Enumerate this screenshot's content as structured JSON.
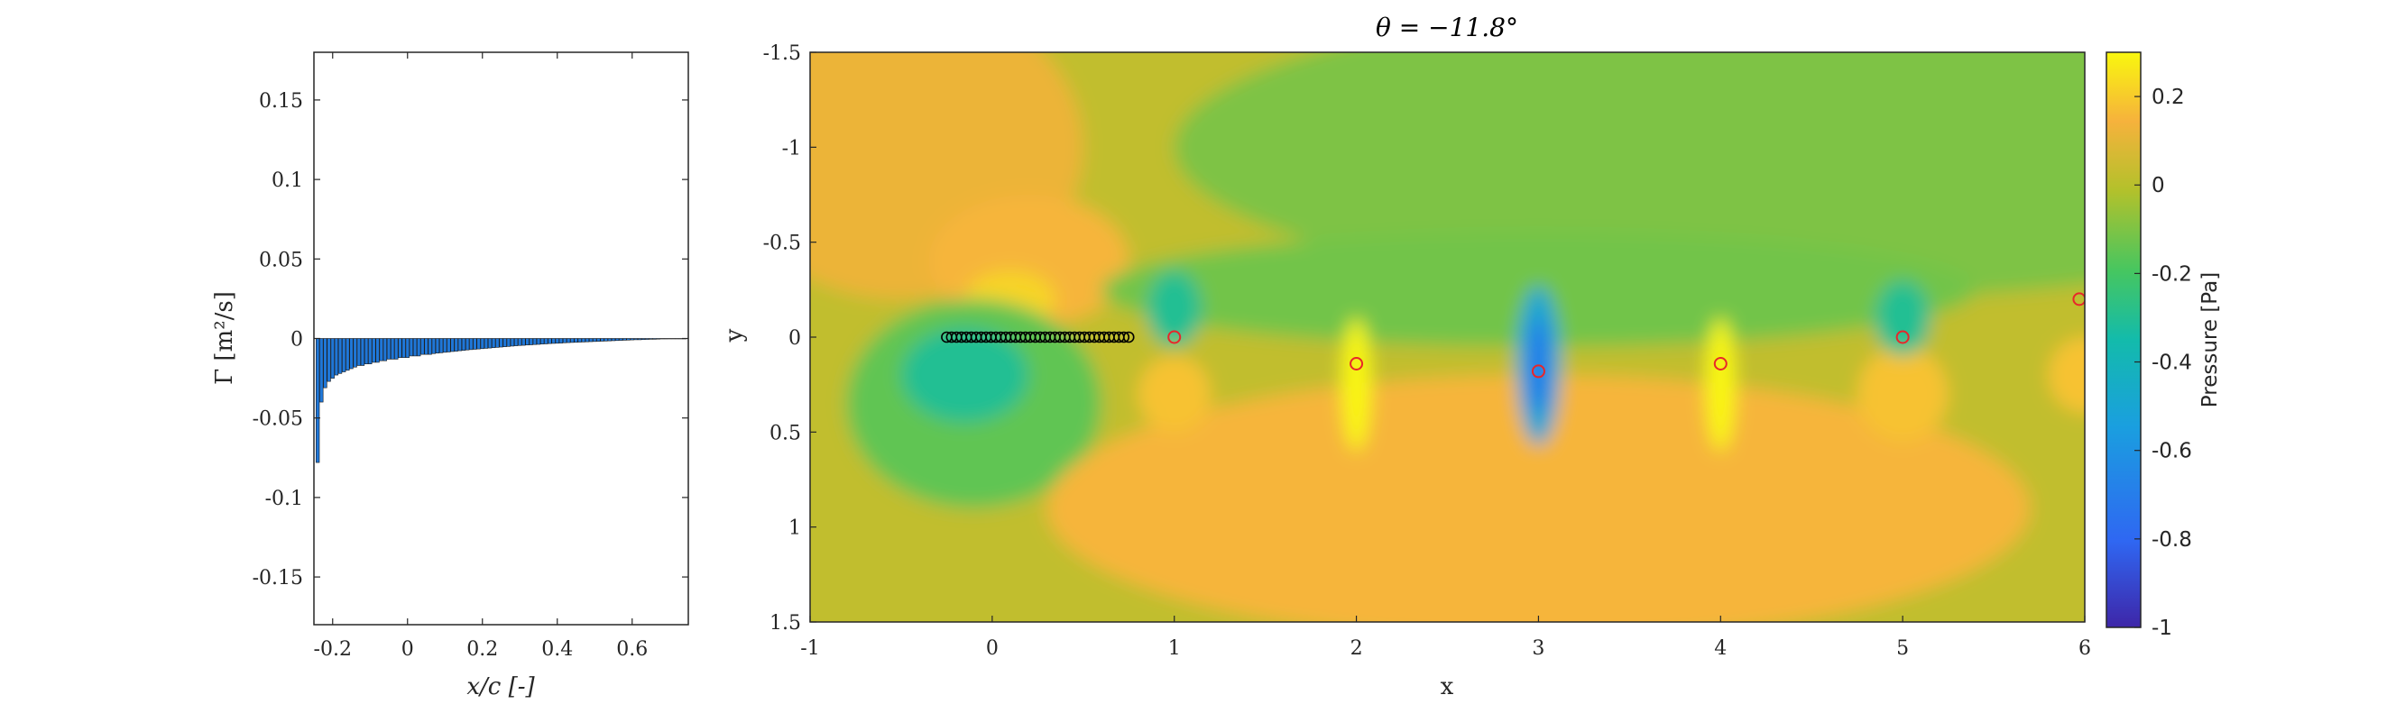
{
  "chart_data": [
    {
      "type": "bar",
      "xlabel": "x/c [-]",
      "ylabel": "Γ [m²/s]",
      "xlim": [
        -0.25,
        0.75
      ],
      "ylim": [
        -0.18,
        0.18
      ],
      "xticks": [
        "-0.2",
        "0",
        "0.2",
        "0.4",
        "0.6"
      ],
      "yticks": [
        "0.15",
        "0.1",
        "0.05",
        "0",
        "-0.05",
        "-0.1",
        "-0.15"
      ],
      "bar_color": "#1f77d8",
      "x": [
        -0.24,
        -0.23,
        -0.22,
        -0.21,
        -0.2,
        -0.19,
        -0.18,
        -0.17,
        -0.16,
        -0.15,
        -0.14,
        -0.13,
        -0.12,
        -0.11,
        -0.1,
        -0.09,
        -0.08,
        -0.07,
        -0.06,
        -0.05,
        -0.04,
        -0.03,
        -0.02,
        -0.01,
        0.0,
        0.01,
        0.02,
        0.03,
        0.04,
        0.05,
        0.06,
        0.07,
        0.08,
        0.09,
        0.1,
        0.11,
        0.12,
        0.13,
        0.14,
        0.15,
        0.16,
        0.17,
        0.18,
        0.19,
        0.2,
        0.21,
        0.22,
        0.23,
        0.24,
        0.25,
        0.26,
        0.27,
        0.28,
        0.29,
        0.3,
        0.31,
        0.32,
        0.33,
        0.34,
        0.35,
        0.36,
        0.37,
        0.38,
        0.39,
        0.4,
        0.41,
        0.42,
        0.43,
        0.44,
        0.45,
        0.46,
        0.47,
        0.48,
        0.49,
        0.5,
        0.51,
        0.52,
        0.53,
        0.54,
        0.55,
        0.56,
        0.57,
        0.58,
        0.59,
        0.6,
        0.61,
        0.62,
        0.63,
        0.64,
        0.65,
        0.66,
        0.67,
        0.68,
        0.69,
        0.7,
        0.71,
        0.72,
        0.73,
        0.74
      ],
      "values": [
        -0.078,
        -0.04,
        -0.031,
        -0.027,
        -0.025,
        -0.023,
        -0.022,
        -0.021,
        -0.02,
        -0.019,
        -0.018,
        -0.017,
        -0.017,
        -0.016,
        -0.016,
        -0.015,
        -0.015,
        -0.014,
        -0.014,
        -0.013,
        -0.013,
        -0.013,
        -0.012,
        -0.012,
        -0.012,
        -0.011,
        -0.011,
        -0.011,
        -0.01,
        -0.01,
        -0.01,
        -0.0095,
        -0.0092,
        -0.009,
        -0.0087,
        -0.0085,
        -0.0082,
        -0.008,
        -0.0077,
        -0.0075,
        -0.0072,
        -0.007,
        -0.0068,
        -0.0066,
        -0.0064,
        -0.0062,
        -0.006,
        -0.0058,
        -0.0056,
        -0.0054,
        -0.0052,
        -0.005,
        -0.0048,
        -0.0046,
        -0.0044,
        -0.0043,
        -0.0041,
        -0.004,
        -0.0038,
        -0.0037,
        -0.0035,
        -0.0034,
        -0.0032,
        -0.0031,
        -0.003,
        -0.0029,
        -0.0027,
        -0.0026,
        -0.0025,
        -0.0024,
        -0.0023,
        -0.0022,
        -0.0021,
        -0.002,
        -0.0019,
        -0.0018,
        -0.0017,
        -0.0016,
        -0.0015,
        -0.0014,
        -0.0013,
        -0.0012,
        -0.0011,
        -0.001,
        -0.0009,
        -0.0008,
        -0.0008,
        -0.0007,
        -0.0006,
        -0.0005,
        -0.0005,
        -0.0004,
        -0.0003,
        -0.0003,
        -0.0002,
        -0.0002,
        -0.0001,
        -0.0001,
        -5e-05
      ]
    },
    {
      "type": "heatmap",
      "title": "θ = −11.8°",
      "xlabel": "x",
      "ylabel": "y",
      "xlim": [
        -1,
        6
      ],
      "ylim": [
        -1.5,
        1.5
      ],
      "y_reversed": true,
      "xticks": [
        "-1",
        "0",
        "1",
        "2",
        "3",
        "4",
        "5",
        "6"
      ],
      "yticks": [
        "-1.5",
        "-1",
        "-0.5",
        "0",
        "0.5",
        "1",
        "1.5"
      ],
      "colorbar": {
        "label": "Pressure [Pa]",
        "range": [
          -1,
          0.3
        ],
        "ticks": [
          "0.2",
          "0",
          "-0.2",
          "-0.4",
          "-0.6",
          "-0.8",
          "-1"
        ]
      },
      "field_regions": [
        {
          "shape": "rect",
          "x": [
            -1,
            6
          ],
          "y": [
            -1.5,
            1.5
          ],
          "pressure": 0.02
        },
        {
          "shape": "ellipse",
          "cx": -0.5,
          "cy": -1.0,
          "rx": 1.0,
          "ry": 0.8,
          "pressure": 0.12
        },
        {
          "shape": "ellipse",
          "cx": 4.5,
          "cy": -1.0,
          "rx": 3.5,
          "ry": 0.8,
          "pressure": -0.1
        },
        {
          "shape": "ellipse",
          "cx": 0.2,
          "cy": -0.4,
          "rx": 0.55,
          "ry": 0.35,
          "pressure": 0.15
        },
        {
          "shape": "ellipse",
          "cx": 0.1,
          "cy": -0.2,
          "rx": 0.25,
          "ry": 0.15,
          "pressure": 0.22
        },
        {
          "shape": "ellipse",
          "cx": -0.1,
          "cy": 0.35,
          "rx": 0.7,
          "ry": 0.55,
          "pressure": -0.15
        },
        {
          "shape": "ellipse",
          "cx": -0.15,
          "cy": 0.2,
          "rx": 0.35,
          "ry": 0.25,
          "pressure": -0.3
        },
        {
          "shape": "ellipse",
          "cx": 3.0,
          "cy": -0.25,
          "rx": 2.4,
          "ry": 0.3,
          "pressure": -0.12
        },
        {
          "shape": "ellipse",
          "cx": 3.0,
          "cy": 0.9,
          "rx": 2.7,
          "ry": 0.7,
          "pressure": 0.15
        },
        {
          "shape": "ellipse",
          "cx": 1.0,
          "cy": 0.3,
          "rx": 0.2,
          "ry": 0.2,
          "pressure": 0.18
        },
        {
          "shape": "ellipse",
          "cx": 5.0,
          "cy": 0.3,
          "rx": 0.25,
          "ry": 0.25,
          "pressure": 0.18
        },
        {
          "shape": "ellipse",
          "cx": 6.0,
          "cy": 0.2,
          "rx": 0.2,
          "ry": 0.2,
          "pressure": 0.18
        },
        {
          "shape": "ellipse",
          "cx": 1.0,
          "cy": -0.15,
          "rx": 0.15,
          "ry": 0.2,
          "pressure": -0.3
        },
        {
          "shape": "ellipse",
          "cx": 5.0,
          "cy": -0.1,
          "rx": 0.15,
          "ry": 0.2,
          "pressure": -0.3
        },
        {
          "shape": "ellipse",
          "cx": 2.0,
          "cy": 0.25,
          "rx": 0.08,
          "ry": 0.35,
          "pressure": 0.3
        },
        {
          "shape": "ellipse",
          "cx": 4.0,
          "cy": 0.25,
          "rx": 0.08,
          "ry": 0.35,
          "pressure": 0.3
        },
        {
          "shape": "ellipse",
          "cx": 3.0,
          "cy": 0.15,
          "rx": 0.12,
          "ry": 0.42,
          "pressure": -0.5
        },
        {
          "shape": "ellipse",
          "cx": 3.0,
          "cy": 0.15,
          "rx": 0.05,
          "ry": 0.25,
          "pressure": -0.75
        }
      ],
      "airfoil_panels": {
        "x_start": -0.25,
        "x_end": 0.75,
        "y": 0,
        "count": 38,
        "color": "#000000"
      },
      "vortex_markers": {
        "color": "#e8262a",
        "x": [
          1.0,
          2.0,
          3.0,
          4.0,
          5.0,
          5.97
        ],
        "y": [
          0.0,
          0.14,
          0.18,
          0.14,
          0.0,
          -0.2
        ]
      }
    }
  ]
}
